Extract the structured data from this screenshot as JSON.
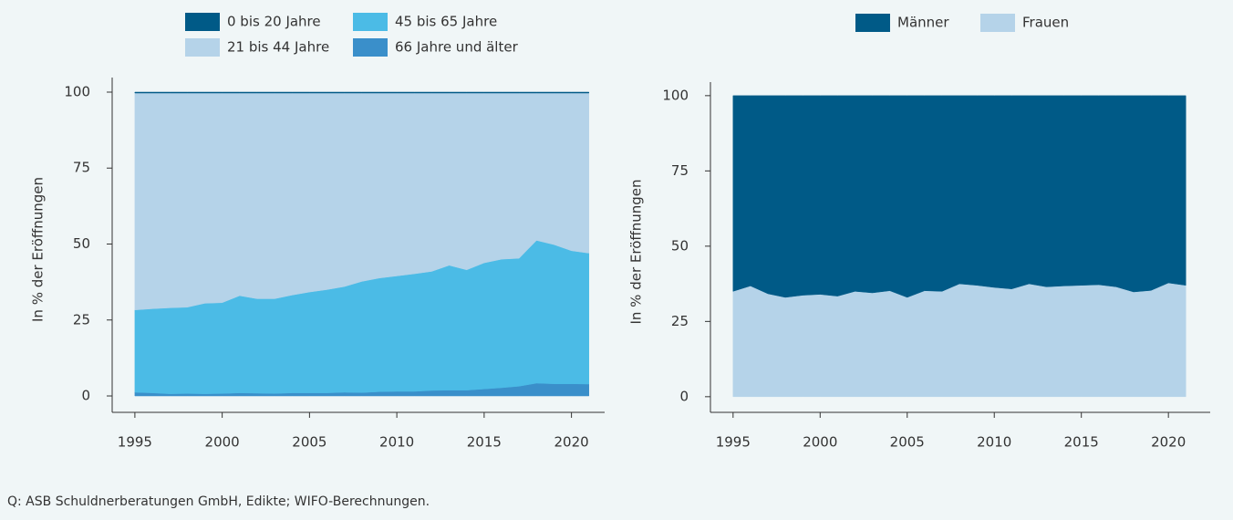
{
  "chart_data": [
    {
      "type": "area",
      "stacked": true,
      "ylabel": "In % der Eröffnungen",
      "x": [
        1995,
        1996,
        1997,
        1998,
        1999,
        2000,
        2001,
        2002,
        2003,
        2004,
        2005,
        2006,
        2007,
        2008,
        2009,
        2010,
        2011,
        2012,
        2013,
        2014,
        2015,
        2016,
        2017,
        2018,
        2019,
        2020,
        2021
      ],
      "series": [
        {
          "name": "0 bis 20 Jahre",
          "color": "#005a87",
          "values": [
            0.3,
            0.3,
            0.3,
            0.3,
            0.3,
            0.3,
            0.3,
            0.3,
            0.3,
            0.3,
            0.3,
            0.3,
            0.3,
            0.3,
            0.3,
            0.3,
            0.3,
            0.3,
            0.3,
            0.3,
            0.3,
            0.3,
            0.3,
            0.3,
            0.3,
            0.3,
            0.3
          ]
        },
        {
          "name": "21 bis 44 Jahre",
          "color": "#b5d3e9",
          "values": [
            71.4,
            71.0,
            70.7,
            70.5,
            69.2,
            69.0,
            66.7,
            67.7,
            67.7,
            66.5,
            65.5,
            64.7,
            63.7,
            62.0,
            60.9,
            60.2,
            59.5,
            58.7,
            56.7,
            58.2,
            55.9,
            54.7,
            54.4,
            48.5,
            49.9,
            51.9,
            52.7
          ]
        },
        {
          "name": "45 bis 65 Jahre",
          "color": "#4bbbe6",
          "values": [
            27.1,
            27.7,
            28.3,
            28.4,
            29.8,
            29.9,
            32.0,
            31.1,
            31.2,
            32.2,
            33.2,
            34.0,
            34.8,
            36.6,
            37.4,
            38.0,
            38.7,
            39.2,
            41.1,
            39.6,
            41.5,
            42.3,
            42.1,
            47.0,
            45.8,
            43.8,
            43.1
          ]
        },
        {
          "name": "66 Jahre und älter",
          "color": "#3a8fca",
          "values": [
            1.2,
            1.0,
            0.7,
            0.8,
            0.7,
            0.8,
            1.0,
            0.9,
            0.8,
            1.0,
            1.0,
            1.0,
            1.2,
            1.1,
            1.4,
            1.5,
            1.5,
            1.8,
            1.9,
            1.9,
            2.3,
            2.7,
            3.2,
            4.2,
            4.0,
            4.0,
            3.9
          ]
        }
      ],
      "xlim": [
        1993.7,
        2021.9
      ],
      "xticks": [
        1995,
        2000,
        2005,
        2010,
        2015,
        2020
      ],
      "ylim": [
        -5.4,
        104.8
      ],
      "yticks": [
        0,
        25,
        50,
        75,
        100
      ]
    },
    {
      "type": "area",
      "stacked": true,
      "ylabel": "In % der Eröffnungen",
      "x": [
        1995,
        1996,
        1997,
        1998,
        1999,
        2000,
        2001,
        2002,
        2003,
        2004,
        2005,
        2006,
        2007,
        2008,
        2009,
        2010,
        2011,
        2012,
        2013,
        2014,
        2015,
        2016,
        2017,
        2018,
        2019,
        2020,
        2021
      ],
      "series": [
        {
          "name": "Männer",
          "color": "#005a87",
          "values": [
            65.0,
            63.2,
            65.8,
            67.0,
            66.3,
            66.0,
            66.6,
            65.0,
            65.5,
            64.8,
            67.0,
            64.8,
            65.0,
            62.5,
            63.0,
            63.7,
            64.2,
            62.5,
            63.5,
            63.2,
            63.0,
            62.8,
            63.5,
            65.2,
            64.7,
            62.2,
            63.0
          ]
        },
        {
          "name": "Frauen",
          "color": "#b5d3e9",
          "values": [
            35.0,
            36.8,
            34.2,
            33.0,
            33.7,
            34.0,
            33.4,
            35.0,
            34.5,
            35.2,
            33.0,
            35.2,
            35.0,
            37.5,
            37.0,
            36.3,
            35.8,
            37.5,
            36.5,
            36.8,
            37.0,
            37.2,
            36.5,
            34.8,
            35.3,
            37.8,
            37.0
          ]
        }
      ],
      "xlim": [
        1993.7,
        2022.4
      ],
      "xticks": [
        1995,
        2000,
        2005,
        2010,
        2015,
        2020
      ],
      "ylim": [
        -5.2,
        104.5
      ],
      "yticks": [
        0,
        25,
        50,
        75,
        100
      ]
    }
  ],
  "source": "Q: ASB Schuldnerberatungen GmbH, Edikte; WIFO-Berechnungen."
}
